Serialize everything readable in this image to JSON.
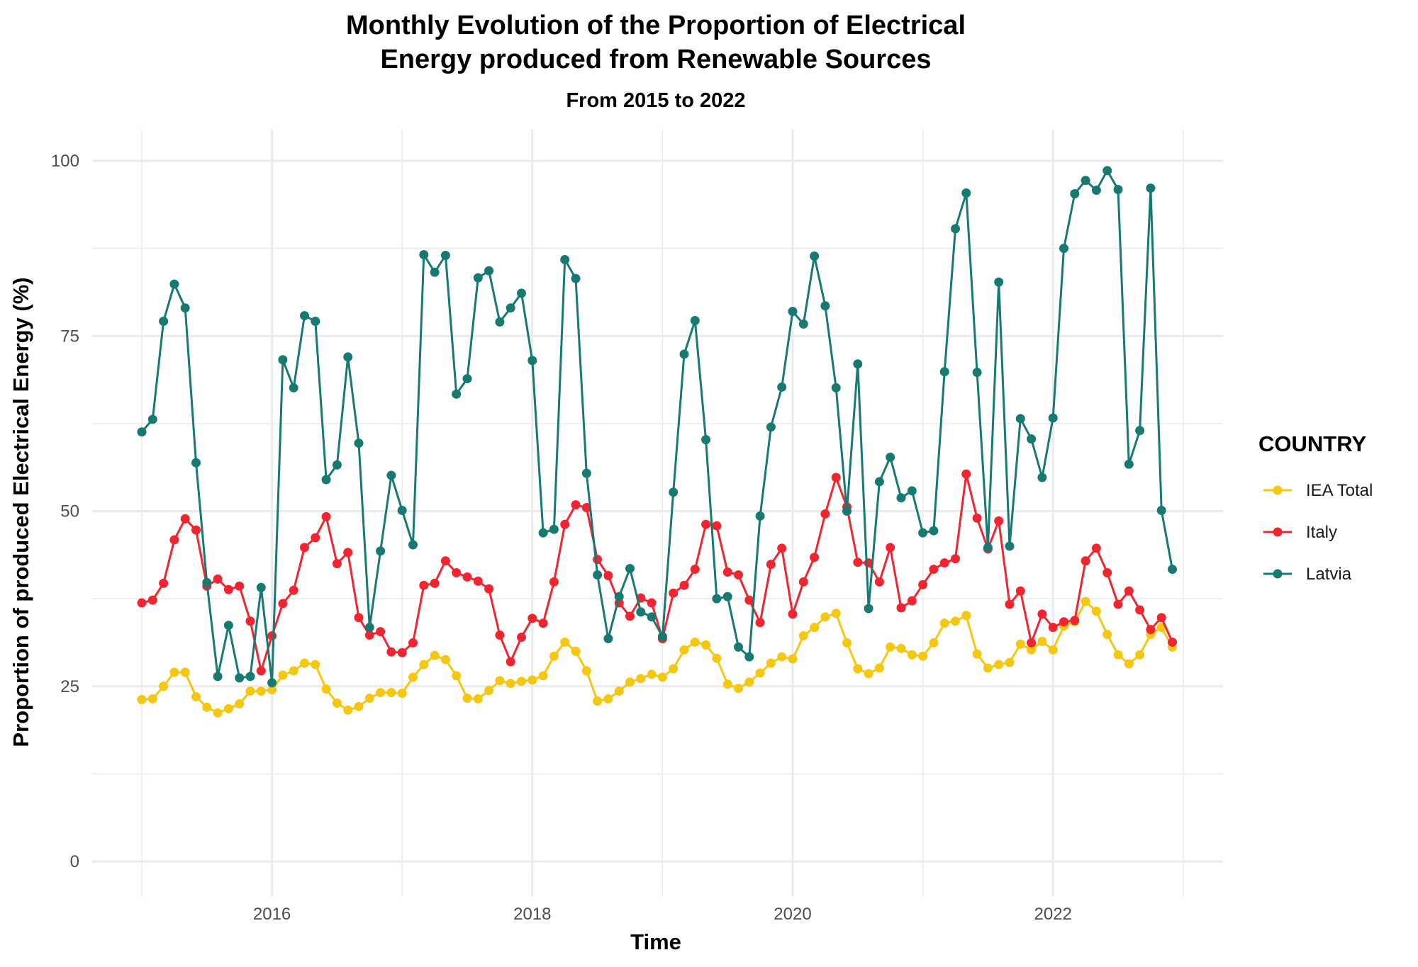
{
  "chart_data": {
    "type": "line",
    "title_line1": "Monthly Evolution of the Proportion of Electrical",
    "title_line2": "Energy produced from Renewable Sources",
    "subtitle": "From 2015 to 2022",
    "xlabel": "Time",
    "ylabel": "Proportion of produced Electrical Energy (%)",
    "x_start": "2015-01",
    "x_ticks": [
      "2016",
      "2018",
      "2020",
      "2022"
    ],
    "y_ticks": [
      0,
      25,
      50,
      75,
      100
    ],
    "ylim": [
      0,
      100
    ],
    "grid": true,
    "legend": {
      "title": "COUNTRY",
      "position": "right"
    },
    "series": [
      {
        "name": "IEA Total",
        "color": "#F5C710",
        "values": [
          23.1,
          23.2,
          25,
          27,
          27,
          23.5,
          22,
          21.2,
          21.8,
          22.5,
          24.3,
          24.3,
          24.5,
          26.6,
          27.2,
          28.3,
          28.1,
          24.6,
          22.6,
          21.6,
          22.1,
          23.3,
          24.1,
          24.1,
          24,
          26.3,
          28.1,
          29.4,
          28.8,
          26.5,
          23.3,
          23.2,
          24.4,
          25.8,
          25.4,
          25.7,
          25.9,
          26.5,
          29.3,
          31.3,
          30,
          27.2,
          22.9,
          23.2,
          24.3,
          25.6,
          26.1,
          26.7,
          26.3,
          27.5,
          30.2,
          31.3,
          30.9,
          29,
          25.3,
          24.7,
          25.6,
          26.9,
          28.3,
          29.2,
          28.9,
          32.2,
          33.4,
          34.9,
          35.4,
          31.2,
          27.5,
          26.8,
          27.6,
          30.6,
          30.4,
          29.5,
          29.3,
          31.2,
          34,
          34.3,
          35.1,
          29.6,
          27.6,
          28.1,
          28.4,
          31,
          30.2,
          31.4,
          30.2,
          33.6,
          34.2,
          37.1,
          35.7,
          32.4,
          29.5,
          28.2,
          29.5,
          32.4,
          33.4,
          30.6
        ]
      },
      {
        "name": "Italy",
        "color": "#F0252F",
        "values": [
          36.9,
          37.3,
          39.7,
          45.9,
          48.9,
          47.3,
          39.3,
          40.3,
          38.8,
          39.3,
          34.3,
          27.2,
          32.2,
          36.8,
          38.7,
          44.8,
          46.2,
          49.2,
          42.5,
          44.1,
          34.8,
          32.3,
          32.8,
          29.9,
          29.8,
          31.2,
          39.4,
          39.7,
          42.9,
          41.2,
          40.6,
          40,
          38.9,
          32.3,
          28.5,
          32,
          34.7,
          34,
          39.9,
          48.1,
          50.9,
          50.5,
          43.1,
          40.8,
          36.9,
          35,
          37.6,
          36.9,
          31.8,
          38.3,
          39.4,
          41.7,
          48.1,
          47.9,
          41.3,
          40.9,
          37.3,
          34.1,
          42.4,
          44.7,
          35.3,
          39.9,
          43.4,
          49.6,
          54.8,
          50.6,
          42.7,
          42.6,
          39.9,
          44.8,
          36.2,
          37.2,
          39.5,
          41.7,
          42.6,
          43.2,
          55.3,
          49,
          44.6,
          48.6,
          36.7,
          38.6,
          31.2,
          35.3,
          33.4,
          34.2,
          34.4,
          42.9,
          44.7,
          41.2,
          36.7,
          38.6,
          35.9,
          33.1,
          34.8,
          31.3
        ]
      },
      {
        "name": "Latvia",
        "color": "#177A72",
        "values": [
          61.3,
          63.1,
          77.1,
          82.4,
          79,
          56.9,
          39.8,
          26.4,
          33.7,
          26.2,
          26.4,
          39.1,
          25.5,
          71.6,
          67.6,
          77.9,
          77.1,
          54.5,
          56.6,
          72,
          59.7,
          33.4,
          44.3,
          55.1,
          50.1,
          45.2,
          86.6,
          84.1,
          86.5,
          66.7,
          68.9,
          83.3,
          84.3,
          77,
          79,
          81.1,
          71.5,
          46.9,
          47.4,
          85.9,
          83.2,
          55.4,
          40.9,
          31.8,
          37.8,
          41.8,
          35.6,
          34.9,
          32.1,
          52.7,
          72.4,
          77.2,
          60.2,
          37.5,
          37.8,
          30.6,
          29.2,
          49.3,
          62,
          67.7,
          78.5,
          76.7,
          86.4,
          79.3,
          67.6,
          50,
          71,
          36.1,
          54.2,
          57.7,
          51.9,
          52.9,
          46.9,
          47.2,
          69.9,
          90.3,
          95.4,
          69.8,
          44.8,
          82.7,
          45,
          63.2,
          60.3,
          54.8,
          63.3,
          87.5,
          95.3,
          97.2,
          95.8,
          98.6,
          95.9,
          56.7,
          61.5,
          96.1,
          50.1,
          41.7
        ]
      }
    ]
  }
}
